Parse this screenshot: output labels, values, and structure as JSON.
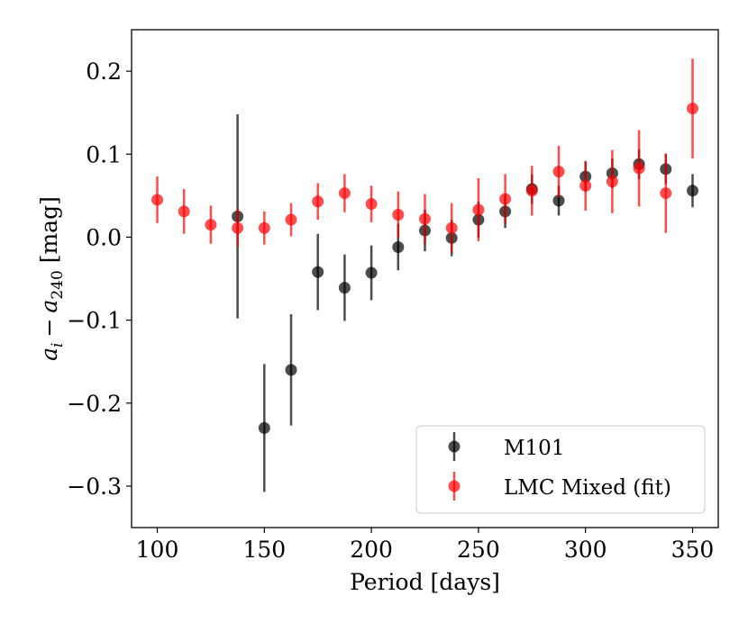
{
  "chart_data": {
    "type": "scatter",
    "title": "",
    "xlabel": "Period [days]",
    "ylabel_parts": {
      "a": "a",
      "i": "i",
      "minus": "−",
      "b": "a",
      "ref": "240",
      "unit": " [mag]"
    },
    "xlim": [
      88,
      362
    ],
    "ylim": [
      -0.35,
      0.25
    ],
    "x_ticks": [
      100,
      150,
      200,
      250,
      300,
      350
    ],
    "x_tick_labels": [
      "100",
      "150",
      "200",
      "250",
      "300",
      "350"
    ],
    "y_ticks": [
      -0.3,
      -0.2,
      -0.1,
      0.0,
      0.1,
      0.2
    ],
    "y_tick_labels": [
      "−0.3",
      "−0.2",
      "−0.1",
      "0.0",
      "0.1",
      "0.2"
    ],
    "grid": false,
    "legend_position": "lower-right",
    "series": [
      {
        "name": "M101",
        "color": "#000000",
        "x": [
          137.5,
          150,
          162.5,
          175,
          187.5,
          200,
          212.5,
          225,
          237.5,
          250,
          262.5,
          275,
          287.5,
          300,
          312.5,
          325,
          337.5,
          350
        ],
        "y": [
          0.025,
          -0.23,
          -0.16,
          -0.042,
          -0.061,
          -0.043,
          -0.012,
          0.008,
          -0.001,
          0.021,
          0.031,
          0.058,
          0.044,
          0.073,
          0.077,
          0.088,
          0.082,
          0.056
        ],
        "err": [
          0.123,
          0.077,
          0.067,
          0.046,
          0.04,
          0.033,
          0.028,
          0.025,
          0.022,
          0.022,
          0.02,
          0.018,
          0.018,
          0.018,
          0.018,
          0.018,
          0.018,
          0.02
        ]
      },
      {
        "name": "LMC Mixed (fit)",
        "color": "#ff0000",
        "x": [
          100,
          112.5,
          125,
          137.5,
          150,
          162.5,
          175,
          187.5,
          200,
          212.5,
          225,
          237.5,
          250,
          262.5,
          275,
          287.5,
          300,
          312.5,
          325,
          337.5,
          350
        ],
        "y": [
          0.045,
          0.031,
          0.015,
          0.011,
          0.011,
          0.021,
          0.043,
          0.053,
          0.04,
          0.027,
          0.022,
          0.011,
          0.033,
          0.046,
          0.056,
          0.079,
          0.062,
          0.067,
          0.083,
          0.053,
          0.155
        ],
        "err": [
          0.028,
          0.027,
          0.023,
          0.023,
          0.02,
          0.02,
          0.022,
          0.023,
          0.022,
          0.028,
          0.03,
          0.03,
          0.038,
          0.03,
          0.03,
          0.031,
          0.03,
          0.038,
          0.046,
          0.048,
          0.06
        ]
      }
    ]
  }
}
